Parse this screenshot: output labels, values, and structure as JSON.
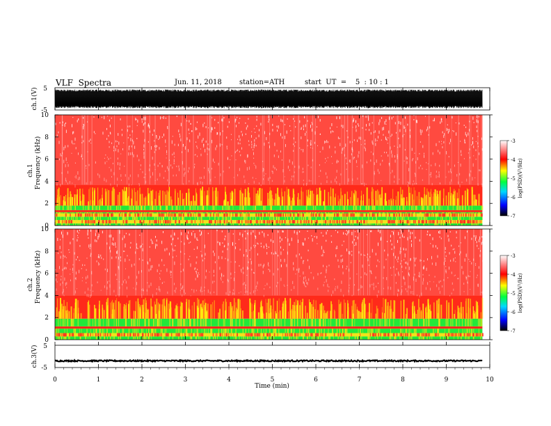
{
  "header": {
    "title": "VLF  Spectra",
    "date": "Jun. 11, 2018",
    "station": "station=ATH",
    "start": "start  UT  =    5  : 10 : 1"
  },
  "chart_data": [
    {
      "type": "line",
      "id": "ch1-waveform",
      "ylabel": "ch.1(V)",
      "yticks": [
        "5",
        "-5"
      ],
      "ylim": [
        -5,
        5
      ],
      "x_range_min": [
        0,
        9.83
      ],
      "description_of_signal": "dense noisy waveform filling about ±4 V",
      "color": "#000000"
    },
    {
      "type": "heatmap",
      "id": "ch1-spectrogram",
      "ylabel": "ch.1\nFrequency  (kHz)",
      "ylabel_lines": [
        "ch.1",
        "Frequency  (kHz)"
      ],
      "yticks": [
        "0",
        "2",
        "4",
        "6",
        "8",
        "10"
      ],
      "ylim_khz": [
        0,
        10
      ],
      "x_range_min": [
        0,
        9.83
      ],
      "bands": [
        {
          "from_khz": 0.0,
          "to_khz": 0.2,
          "level": "green"
        },
        {
          "from_khz": 0.2,
          "to_khz": 0.5,
          "level": "yellow-red"
        },
        {
          "from_khz": 0.5,
          "to_khz": 0.8,
          "level": "green"
        },
        {
          "from_khz": 0.8,
          "to_khz": 1.1,
          "level": "yellow-red"
        },
        {
          "from_khz": 1.1,
          "to_khz": 1.2,
          "level": "green"
        },
        {
          "from_khz": 1.2,
          "to_khz": 1.4,
          "level": "red"
        },
        {
          "from_khz": 1.4,
          "to_khz": 1.8,
          "level": "green"
        },
        {
          "from_khz": 1.8,
          "to_khz": 3.7,
          "level": "red with yellow bursts"
        },
        {
          "from_khz": 3.7,
          "to_khz": 10.0,
          "level": "red speckled to white"
        }
      ]
    },
    {
      "type": "heatmap",
      "id": "ch2-spectrogram",
      "ylabel": "ch.2\nFrequency  (kHz)",
      "ylabel_lines": [
        "ch.2",
        "Frequency  (kHz)"
      ],
      "yticks": [
        "0",
        "2",
        "4",
        "6",
        "8",
        "10"
      ],
      "ylim_khz": [
        0,
        10
      ],
      "x_range_min": [
        0,
        9.83
      ],
      "bands": [
        {
          "from_khz": 0.0,
          "to_khz": 0.3,
          "level": "green"
        },
        {
          "from_khz": 0.3,
          "to_khz": 0.6,
          "level": "yellow-red"
        },
        {
          "from_khz": 0.6,
          "to_khz": 1.0,
          "level": "green"
        },
        {
          "from_khz": 1.0,
          "to_khz": 1.2,
          "level": "red"
        },
        {
          "from_khz": 1.2,
          "to_khz": 1.9,
          "level": "green"
        },
        {
          "from_khz": 1.9,
          "to_khz": 4.0,
          "level": "red with yellow bursts"
        },
        {
          "from_khz": 4.0,
          "to_khz": 10.0,
          "level": "red speckled to white"
        }
      ]
    },
    {
      "type": "line",
      "id": "ch3-waveform",
      "ylabel": "ch.3(V)",
      "yticks": [
        "5",
        "-5"
      ],
      "ylim": [
        -5,
        5
      ],
      "x_range_min": [
        0,
        9.83
      ],
      "flat_level_v": -2,
      "color": "#000000"
    }
  ],
  "x_axis": {
    "label": "Time  (min)",
    "ticks": [
      "0",
      "1",
      "2",
      "3",
      "4",
      "5",
      "6",
      "7",
      "8",
      "9",
      "10"
    ],
    "xlim": [
      0,
      10
    ]
  },
  "colorbar": {
    "label": "log(PSD)(V²/Hz)",
    "ticks": [
      "-3",
      "-4",
      "-5",
      "-6",
      "-7"
    ],
    "range": [
      -7,
      -3
    ],
    "colors": [
      "#000000",
      "#0000ff",
      "#00e0ff",
      "#00ff00",
      "#ffff00",
      "#ff0000",
      "#ffffff"
    ]
  }
}
